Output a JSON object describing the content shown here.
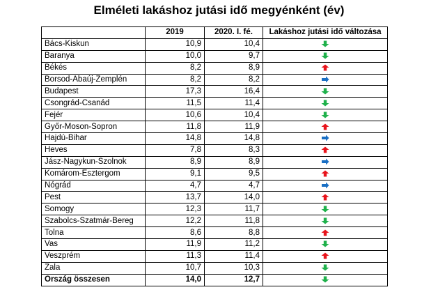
{
  "chart_data": {
    "type": "table",
    "title": "Elméleti lakáshoz jutási idő megyénként (év)",
    "columns": [
      "",
      "2019",
      "2020. I. fé.",
      "Lakáshoz jutási idő változása"
    ],
    "rows": [
      {
        "name": "Bács-Kiskun",
        "v2019": "10,9",
        "v2020": "10,4",
        "change": "down"
      },
      {
        "name": "Baranya",
        "v2019": "10,0",
        "v2020": "9,7",
        "change": "down"
      },
      {
        "name": "Békés",
        "v2019": "8,2",
        "v2020": "8,9",
        "change": "up"
      },
      {
        "name": "Borsod-Abaúj-Zemplén",
        "v2019": "8,2",
        "v2020": "8,2",
        "change": "same"
      },
      {
        "name": "Budapest",
        "v2019": "17,3",
        "v2020": "16,4",
        "change": "down"
      },
      {
        "name": "Csongrád-Csanád",
        "v2019": "11,5",
        "v2020": "11,4",
        "change": "down"
      },
      {
        "name": "Fejér",
        "v2019": "10,6",
        "v2020": "10,4",
        "change": "down"
      },
      {
        "name": "Győr-Moson-Sopron",
        "v2019": "11,8",
        "v2020": "11,9",
        "change": "up"
      },
      {
        "name": "Hajdú-Bihar",
        "v2019": "14,8",
        "v2020": "14,8",
        "change": "same"
      },
      {
        "name": "Heves",
        "v2019": "7,8",
        "v2020": "8,3",
        "change": "up"
      },
      {
        "name": "Jász-Nagykun-Szolnok",
        "v2019": "8,9",
        "v2020": "8,9",
        "change": "same"
      },
      {
        "name": "Komárom-Esztergom",
        "v2019": "9,1",
        "v2020": "9,5",
        "change": "up"
      },
      {
        "name": "Nógrád",
        "v2019": "4,7",
        "v2020": "4,7",
        "change": "same"
      },
      {
        "name": "Pest",
        "v2019": "13,7",
        "v2020": "14,0",
        "change": "up"
      },
      {
        "name": "Somogy",
        "v2019": "12,3",
        "v2020": "11,7",
        "change": "down"
      },
      {
        "name": "Szabolcs-Szatmár-Bereg",
        "v2019": "12,2",
        "v2020": "11,8",
        "change": "down"
      },
      {
        "name": "Tolna",
        "v2019": "8,6",
        "v2020": "8,8",
        "change": "up"
      },
      {
        "name": "Vas",
        "v2019": "11,9",
        "v2020": "11,2",
        "change": "down"
      },
      {
        "name": "Veszprém",
        "v2019": "11,3",
        "v2020": "11,4",
        "change": "up"
      },
      {
        "name": "Zala",
        "v2019": "10,7",
        "v2020": "10,3",
        "change": "down"
      }
    ],
    "total": {
      "name": "Ország összesen",
      "v2019": "14,0",
      "v2020": "12,7",
      "change": "down"
    },
    "colors": {
      "up": "#e8141c",
      "down": "#1fb14b",
      "same": "#1a6fc4"
    }
  }
}
